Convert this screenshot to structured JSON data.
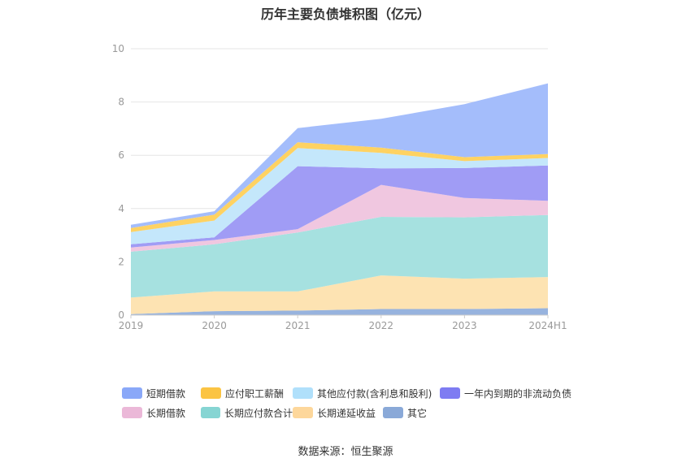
{
  "source": "数据来源：恒生聚源",
  "chart_data": {
    "type": "area",
    "stacked": true,
    "title": "历年主要负债堆积图（亿元）",
    "xlabel": "",
    "ylabel": "",
    "categories": [
      "2019",
      "2020",
      "2021",
      "2022",
      "2023",
      "2024H1"
    ],
    "ylim": [
      0,
      10
    ],
    "yticks": [
      0,
      2,
      4,
      6,
      8,
      10
    ],
    "grid": true,
    "legend_position": "bottom",
    "series": [
      {
        "name": "其它",
        "color": "#97b3de",
        "values": [
          0.04,
          0.15,
          0.17,
          0.23,
          0.23,
          0.26
        ]
      },
      {
        "name": "长期递延收益",
        "color": "#fde3b2",
        "values": [
          0.62,
          0.74,
          0.72,
          1.26,
          1.14,
          1.17
        ]
      },
      {
        "name": "长期应付款合计",
        "color": "#a6e1e0",
        "values": [
          1.72,
          1.77,
          2.21,
          2.2,
          2.3,
          2.33
        ]
      },
      {
        "name": "长期借款",
        "color": "#f0c7e0",
        "values": [
          0.16,
          0.16,
          0.13,
          1.2,
          0.73,
          0.53
        ]
      },
      {
        "name": "一年内到期的非流动负债",
        "color": "#a09cf5",
        "values": [
          0.12,
          0.1,
          2.36,
          0.62,
          1.12,
          1.33
        ]
      },
      {
        "name": "其他应付款(含利息和股利)",
        "color": "#c4e7fb",
        "values": [
          0.46,
          0.63,
          0.68,
          0.58,
          0.26,
          0.28
        ]
      },
      {
        "name": "应付职工薪酬",
        "color": "#fed262",
        "values": [
          0.15,
          0.22,
          0.22,
          0.2,
          0.15,
          0.15
        ]
      },
      {
        "name": "短期借款",
        "color": "#a4bdfb",
        "values": [
          0.12,
          0.13,
          0.53,
          1.08,
          1.99,
          2.65
        ]
      }
    ]
  },
  "legend_rows": [
    [
      {
        "name": "短期借款",
        "color": "#8aa8f8"
      },
      {
        "name": "应付职工薪酬",
        "color": "#fbc443"
      },
      {
        "name": "其他应付款(含利息和股利)",
        "color": "#b0e0fb"
      },
      {
        "name": "一年内到期的非流动负债",
        "color": "#7e7cf2"
      }
    ],
    [
      {
        "name": "长期借款",
        "color": "#ebb8d8"
      },
      {
        "name": "长期应付款合计",
        "color": "#86d5d3"
      },
      {
        "name": "长期递延收益",
        "color": "#fdd79b"
      },
      {
        "name": "其它",
        "color": "#8aa9d8"
      }
    ]
  ]
}
